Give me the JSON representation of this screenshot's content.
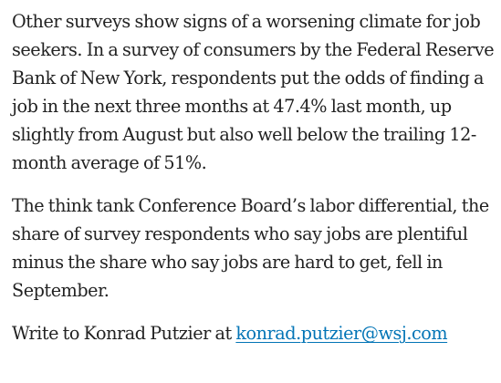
{
  "article": {
    "paragraphs": [
      "Other surveys show signs of a worsening climate for job seekers. In a survey of consumers by the Federal Reserve Bank of New York, respondents put the odds of finding a job in the next three months at 47.4% last month, up slightly from August but also well below the trailing 12-month average of 51%.",
      "The think tank Conference Board’s labor differential, the share of survey respondents who say jobs are plentiful minus the share who say jobs are hard to get, fell in September."
    ],
    "byline": {
      "prefix": "Write to Konrad Putzier at ",
      "email": "konrad.putzier@wsj.com",
      "link_color": "#0274b6"
    },
    "text_color": "#222222"
  }
}
